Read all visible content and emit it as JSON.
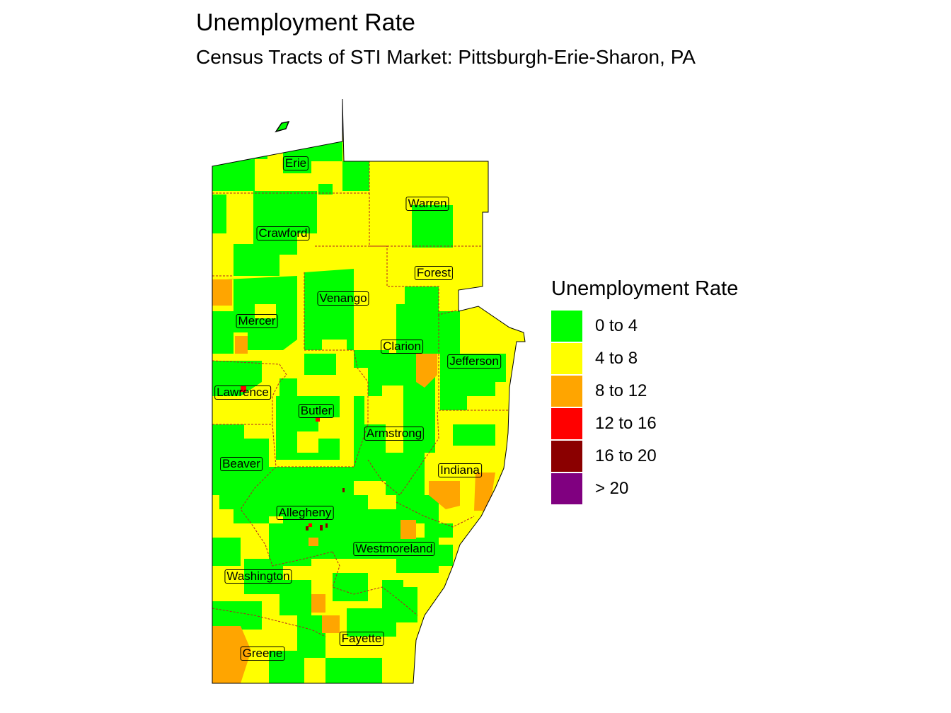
{
  "title": "Unemployment Rate",
  "subtitle": "Census Tracts of STI Market: Pittsburgh-Erie-Sharon, PA",
  "legend": {
    "title": "Unemployment Rate",
    "items": [
      {
        "label": "0 to 4",
        "color": "#00ff00"
      },
      {
        "label": "4 to 8",
        "color": "#ffff00"
      },
      {
        "label": "8 to 12",
        "color": "#ffa500"
      },
      {
        "label": "12 to 16",
        "color": "#ff0000"
      },
      {
        "label": "16 to 20",
        "color": "#8b0000"
      },
      {
        "label": "> 20",
        "color": "#800080"
      }
    ]
  },
  "counties": [
    "Erie",
    "Warren",
    "Crawford",
    "Forest",
    "Venango",
    "Mercer",
    "Clarion",
    "Jefferson",
    "Lawrence",
    "Butler",
    "Armstrong",
    "Beaver",
    "Indiana",
    "Allegheny",
    "Westmoreland",
    "Washington",
    "Fayette",
    "Greene"
  ],
  "colors": {
    "boundary": "#000000",
    "county_border": "#b22222"
  }
}
